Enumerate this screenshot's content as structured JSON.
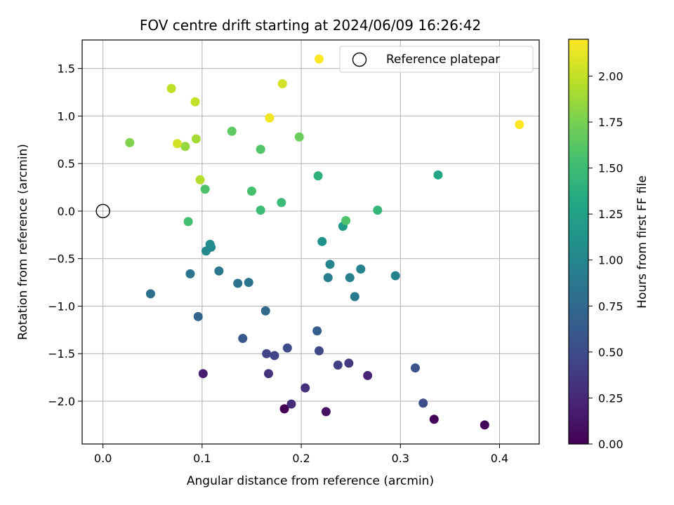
{
  "chart_data": {
    "type": "scatter",
    "title": "FOV centre drift starting at 2024/06/09 16:26:42",
    "xlabel": "Angular distance from reference (arcmin)",
    "ylabel": "Rotation from reference (arcmin)",
    "xlim": [
      -0.021,
      0.44
    ],
    "ylim": [
      -2.45,
      1.8
    ],
    "xticks": [
      0.0,
      0.1,
      0.2,
      0.3,
      0.4
    ],
    "xtick_labels": [
      "0.0",
      "0.1",
      "0.2",
      "0.3",
      "0.4"
    ],
    "yticks": [
      -2.0,
      -1.5,
      -1.0,
      -0.5,
      0.0,
      0.5,
      1.0,
      1.5
    ],
    "ytick_labels": [
      "−2.0",
      "−1.5",
      "−1.0",
      "−0.5",
      "0.0",
      "0.5",
      "1.0",
      "1.5"
    ],
    "grid": true,
    "colormap": "viridis",
    "colorbar": {
      "label": "Hours from first FF file",
      "range": [
        0.0,
        2.2
      ],
      "ticks": [
        0.0,
        0.25,
        0.5,
        0.75,
        1.0,
        1.25,
        1.5,
        1.75,
        2.0
      ],
      "tick_labels": [
        "0.00",
        "0.25",
        "0.50",
        "0.75",
        "1.00",
        "1.25",
        "1.50",
        "1.75",
        "2.00"
      ]
    },
    "legend": {
      "position": "top-right",
      "entries": [
        "Reference platepar"
      ]
    },
    "reference_point": {
      "x": 0.0,
      "y": 0.0
    },
    "points": [
      {
        "x": 0.183,
        "y": -2.08,
        "c": 0.0
      },
      {
        "x": 0.334,
        "y": -2.19,
        "c": 0.02
      },
      {
        "x": 0.385,
        "y": -2.25,
        "c": 0.04
      },
      {
        "x": 0.225,
        "y": -2.11,
        "c": 0.1
      },
      {
        "x": 0.101,
        "y": -1.71,
        "c": 0.18
      },
      {
        "x": 0.267,
        "y": -1.73,
        "c": 0.22
      },
      {
        "x": 0.19,
        "y": -2.03,
        "c": 0.28
      },
      {
        "x": 0.204,
        "y": -1.86,
        "c": 0.3
      },
      {
        "x": 0.167,
        "y": -1.71,
        "c": 0.33
      },
      {
        "x": 0.248,
        "y": -1.6,
        "c": 0.37
      },
      {
        "x": 0.237,
        "y": -1.62,
        "c": 0.41
      },
      {
        "x": 0.173,
        "y": -1.52,
        "c": 0.44
      },
      {
        "x": 0.165,
        "y": -1.5,
        "c": 0.46
      },
      {
        "x": 0.218,
        "y": -1.47,
        "c": 0.48
      },
      {
        "x": 0.186,
        "y": -1.44,
        "c": 0.5
      },
      {
        "x": 0.323,
        "y": -2.02,
        "c": 0.52
      },
      {
        "x": 0.315,
        "y": -1.65,
        "c": 0.55
      },
      {
        "x": 0.141,
        "y": -1.34,
        "c": 0.6
      },
      {
        "x": 0.216,
        "y": -1.26,
        "c": 0.65
      },
      {
        "x": 0.096,
        "y": -1.11,
        "c": 0.7
      },
      {
        "x": 0.164,
        "y": -1.05,
        "c": 0.75
      },
      {
        "x": 0.048,
        "y": -0.87,
        "c": 0.8
      },
      {
        "x": 0.136,
        "y": -0.76,
        "c": 0.82
      },
      {
        "x": 0.147,
        "y": -0.75,
        "c": 0.84
      },
      {
        "x": 0.088,
        "y": -0.66,
        "c": 0.86
      },
      {
        "x": 0.117,
        "y": -0.63,
        "c": 0.88
      },
      {
        "x": 0.254,
        "y": -0.9,
        "c": 0.9
      },
      {
        "x": 0.227,
        "y": -0.7,
        "c": 0.92
      },
      {
        "x": 0.249,
        "y": -0.7,
        "c": 0.94
      },
      {
        "x": 0.295,
        "y": -0.68,
        "c": 0.96
      },
      {
        "x": 0.26,
        "y": -0.61,
        "c": 0.98
      },
      {
        "x": 0.229,
        "y": -0.56,
        "c": 1.0
      },
      {
        "x": 0.104,
        "y": -0.42,
        "c": 1.02
      },
      {
        "x": 0.109,
        "y": -0.38,
        "c": 1.04
      },
      {
        "x": 0.108,
        "y": -0.35,
        "c": 1.06
      },
      {
        "x": 0.221,
        "y": -0.32,
        "c": 1.1
      },
      {
        "x": 0.242,
        "y": -0.16,
        "c": 1.2
      },
      {
        "x": 0.338,
        "y": 0.38,
        "c": 1.3
      },
      {
        "x": 0.277,
        "y": 0.01,
        "c": 1.45
      },
      {
        "x": 0.217,
        "y": 0.37,
        "c": 1.4
      },
      {
        "x": 0.18,
        "y": 0.09,
        "c": 1.48
      },
      {
        "x": 0.159,
        "y": 0.01,
        "c": 1.5
      },
      {
        "x": 0.086,
        "y": -0.11,
        "c": 1.53
      },
      {
        "x": 0.245,
        "y": -0.1,
        "c": 1.58
      },
      {
        "x": 0.15,
        "y": 0.21,
        "c": 1.55
      },
      {
        "x": 0.103,
        "y": 0.23,
        "c": 1.58
      },
      {
        "x": 0.159,
        "y": 0.65,
        "c": 1.6
      },
      {
        "x": 0.198,
        "y": 0.78,
        "c": 1.7
      },
      {
        "x": 0.13,
        "y": 0.84,
        "c": 1.65
      },
      {
        "x": 0.027,
        "y": 0.72,
        "c": 1.78
      },
      {
        "x": 0.083,
        "y": 0.68,
        "c": 1.85
      },
      {
        "x": 0.094,
        "y": 0.76,
        "c": 1.9
      },
      {
        "x": 0.098,
        "y": 0.33,
        "c": 1.95
      },
      {
        "x": 0.075,
        "y": 0.71,
        "c": 2.05
      },
      {
        "x": 0.069,
        "y": 1.29,
        "c": 1.98
      },
      {
        "x": 0.093,
        "y": 1.15,
        "c": 2.0
      },
      {
        "x": 0.181,
        "y": 1.34,
        "c": 2.05
      },
      {
        "x": 0.168,
        "y": 0.98,
        "c": 2.15
      },
      {
        "x": 0.218,
        "y": 1.6,
        "c": 2.2
      },
      {
        "x": 0.42,
        "y": 0.91,
        "c": 2.2
      }
    ]
  }
}
